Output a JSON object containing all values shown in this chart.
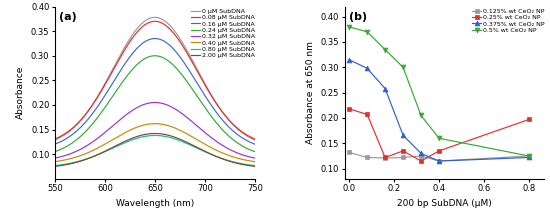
{
  "panel_a": {
    "xlabel": "Wavelength (nm)",
    "ylabel": "Absorbance",
    "xlim": [
      550,
      750
    ],
    "ylim": [
      0.05,
      0.4
    ],
    "yticks": [
      0.1,
      0.15,
      0.2,
      0.25,
      0.3,
      0.35,
      0.4
    ],
    "xticks": [
      550,
      600,
      650,
      700,
      750
    ],
    "label": "(a)",
    "curves": [
      {
        "label": "0 μM SubDNA",
        "color": "#999999",
        "peak": 0.378,
        "base": 0.113
      },
      {
        "label": "0.08 μM SubDNA",
        "color": "#e03030",
        "peak": 0.37,
        "base": 0.116
      },
      {
        "label": "0.16 μM SubDNA",
        "color": "#4466cc",
        "peak": 0.335,
        "base": 0.107
      },
      {
        "label": "0.24 μM SubDNA",
        "color": "#33aa33",
        "peak": 0.3,
        "base": 0.093
      },
      {
        "label": "0.32 μM SubDNA",
        "color": "#9933cc",
        "peak": 0.205,
        "base": 0.085
      },
      {
        "label": "0.40 μM SubDNA",
        "color": "#cc8800",
        "peak": 0.162,
        "base": 0.08
      },
      {
        "label": "0.80 μM SubDNA",
        "color": "#00bbcc",
        "peak": 0.138,
        "base": 0.073
      },
      {
        "label": "2.00 μM SubDNA",
        "color": "#8B4513",
        "peak": 0.142,
        "base": 0.071
      }
    ]
  },
  "panel_b": {
    "xlabel": "200 bp SubDNA (μM)",
    "ylabel": "Absorbance at 650 nm",
    "xlim": [
      -0.02,
      0.87
    ],
    "ylim": [
      0.08,
      0.42
    ],
    "yticks": [
      0.1,
      0.15,
      0.2,
      0.25,
      0.3,
      0.35,
      0.4
    ],
    "xticks": [
      0.0,
      0.2,
      0.4,
      0.6,
      0.8
    ],
    "label": "(b)",
    "series": [
      {
        "label": "0.125% wt CeO₂ NP",
        "color": "#999999",
        "marker": "s",
        "x": [
          0.0,
          0.08,
          0.16,
          0.24,
          0.32,
          0.4,
          0.8
        ],
        "y": [
          0.132,
          0.122,
          0.121,
          0.122,
          0.125,
          0.115,
          0.125
        ]
      },
      {
        "label": "0.25% wt CeO₂ NP",
        "color": "#e03030",
        "marker": "s",
        "x": [
          0.0,
          0.08,
          0.16,
          0.24,
          0.32,
          0.4,
          0.8
        ],
        "y": [
          0.218,
          0.207,
          0.122,
          0.135,
          0.115,
          0.135,
          0.197
        ]
      },
      {
        "label": "0.375% wt CeO₂ NP",
        "color": "#3060cc",
        "marker": "^",
        "x": [
          0.0,
          0.08,
          0.16,
          0.24,
          0.32,
          0.4,
          0.8
        ],
        "y": [
          0.315,
          0.298,
          0.258,
          0.166,
          0.13,
          0.115,
          0.122
        ]
      },
      {
        "label": "0.5% wt CeO₂ NP",
        "color": "#33aa33",
        "marker": "v",
        "x": [
          0.0,
          0.08,
          0.16,
          0.24,
          0.32,
          0.4,
          0.8
        ],
        "y": [
          0.38,
          0.37,
          0.335,
          0.3,
          0.205,
          0.16,
          0.125
        ]
      }
    ]
  }
}
